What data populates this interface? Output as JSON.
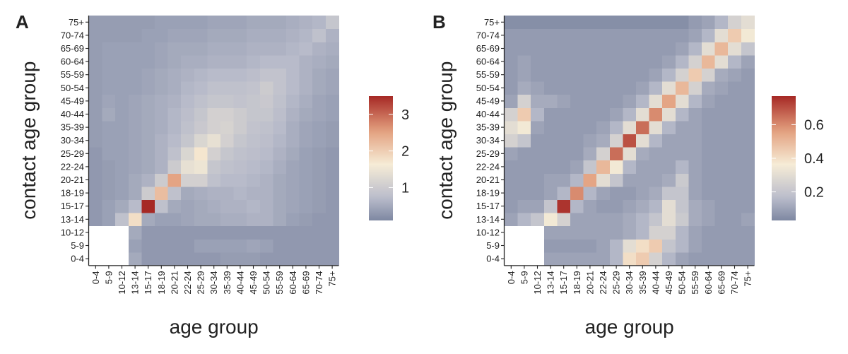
{
  "colors": {
    "low": "#7d87a1",
    "mid_low": "#b9bccb",
    "mid": "#f6ecd6",
    "mid_high": "#e3a07f",
    "high": "#a62925",
    "axis": "#222222"
  },
  "chart_data": [
    {
      "type": "heatmap",
      "panel_label": "A",
      "xlabel": "age group",
      "ylabel": "contact age group",
      "categories": [
        "0-4",
        "5-9",
        "10-12",
        "13-14",
        "15-17",
        "18-19",
        "20-21",
        "22-24",
        "25-29",
        "30-34",
        "35-39",
        "40-44",
        "45-49",
        "50-54",
        "55-59",
        "60-64",
        "65-69",
        "70-74",
        "75+"
      ],
      "value_range": [
        0.1,
        3.5
      ],
      "colorbar_ticks": [
        1,
        2,
        3
      ],
      "colorbar_tick_labels": [
        "1",
        "2",
        "3"
      ],
      "missing_cells": "participant age groups 0-4, 5-9, 10-12 for contact age groups 0-4, 5-9, 10-12",
      "values": [
        [
          null,
          null,
          null,
          0.5,
          0.3,
          0.3,
          0.3,
          0.3,
          0.3,
          0.3,
          0.35,
          0.35,
          0.35,
          0.3,
          0.3,
          0.3,
          0.3,
          0.3,
          0.3
        ],
        [
          null,
          null,
          null,
          0.4,
          0.3,
          0.3,
          0.3,
          0.3,
          0.4,
          0.4,
          0.4,
          0.4,
          0.45,
          0.4,
          0.3,
          0.3,
          0.3,
          0.3,
          0.3
        ],
        [
          null,
          null,
          null,
          0.5,
          0.3,
          0.3,
          0.3,
          0.3,
          0.3,
          0.3,
          0.3,
          0.3,
          0.3,
          0.3,
          0.3,
          0.3,
          0.3,
          0.3,
          0.3
        ],
        [
          0.3,
          0.4,
          0.8,
          1.8,
          0.5,
          0.4,
          0.4,
          0.45,
          0.5,
          0.5,
          0.55,
          0.55,
          0.6,
          0.6,
          0.5,
          0.4,
          0.35,
          0.3,
          0.3
        ],
        [
          0.3,
          0.4,
          0.5,
          0.7,
          3.5,
          0.8,
          0.5,
          0.45,
          0.5,
          0.55,
          0.6,
          0.6,
          0.65,
          0.6,
          0.5,
          0.45,
          0.4,
          0.35,
          0.3
        ],
        [
          0.3,
          0.35,
          0.4,
          0.5,
          1.0,
          2.2,
          0.8,
          0.5,
          0.55,
          0.6,
          0.6,
          0.65,
          0.6,
          0.6,
          0.5,
          0.45,
          0.4,
          0.35,
          0.3
        ],
        [
          0.3,
          0.35,
          0.4,
          0.5,
          0.6,
          1.0,
          2.5,
          1.1,
          1.1,
          0.8,
          0.7,
          0.7,
          0.65,
          0.6,
          0.5,
          0.45,
          0.4,
          0.35,
          0.3
        ],
        [
          0.3,
          0.35,
          0.4,
          0.45,
          0.5,
          0.6,
          1.0,
          1.4,
          1.5,
          0.9,
          0.8,
          0.75,
          0.7,
          0.65,
          0.55,
          0.45,
          0.4,
          0.35,
          0.3
        ],
        [
          0.3,
          0.4,
          0.4,
          0.45,
          0.5,
          0.6,
          0.8,
          1.2,
          1.7,
          1.1,
          0.9,
          0.8,
          0.75,
          0.7,
          0.6,
          0.5,
          0.4,
          0.35,
          0.3
        ],
        [
          0.35,
          0.4,
          0.4,
          0.45,
          0.5,
          0.6,
          0.7,
          0.9,
          1.2,
          1.4,
          1.1,
          0.9,
          0.8,
          0.75,
          0.65,
          0.55,
          0.45,
          0.4,
          0.35
        ],
        [
          0.35,
          0.4,
          0.4,
          0.45,
          0.5,
          0.55,
          0.65,
          0.8,
          0.95,
          1.1,
          1.15,
          1.0,
          0.85,
          0.8,
          0.7,
          0.55,
          0.45,
          0.4,
          0.35
        ],
        [
          0.35,
          0.5,
          0.4,
          0.45,
          0.5,
          0.55,
          0.65,
          0.75,
          0.9,
          1.1,
          1.1,
          1.0,
          0.9,
          0.9,
          0.75,
          0.6,
          0.5,
          0.45,
          0.4
        ],
        [
          0.35,
          0.45,
          0.4,
          0.45,
          0.5,
          0.55,
          0.6,
          0.7,
          0.8,
          0.9,
          0.9,
          0.85,
          0.9,
          0.95,
          0.8,
          0.65,
          0.55,
          0.45,
          0.4
        ],
        [
          0.35,
          0.4,
          0.4,
          0.4,
          0.45,
          0.5,
          0.55,
          0.65,
          0.7,
          0.8,
          0.8,
          0.8,
          0.85,
          1.0,
          0.85,
          0.7,
          0.6,
          0.5,
          0.45
        ],
        [
          0.35,
          0.4,
          0.4,
          0.4,
          0.45,
          0.5,
          0.55,
          0.6,
          0.65,
          0.7,
          0.7,
          0.7,
          0.75,
          0.85,
          0.85,
          0.7,
          0.6,
          0.5,
          0.45
        ],
        [
          0.35,
          0.4,
          0.4,
          0.4,
          0.4,
          0.45,
          0.5,
          0.55,
          0.55,
          0.6,
          0.6,
          0.6,
          0.65,
          0.7,
          0.7,
          0.7,
          0.6,
          0.55,
          0.5
        ],
        [
          0.35,
          0.4,
          0.4,
          0.4,
          0.4,
          0.45,
          0.5,
          0.5,
          0.5,
          0.55,
          0.55,
          0.55,
          0.6,
          0.6,
          0.6,
          0.65,
          0.7,
          0.6,
          0.55
        ],
        [
          0.35,
          0.35,
          0.35,
          0.35,
          0.4,
          0.4,
          0.45,
          0.45,
          0.45,
          0.5,
          0.5,
          0.5,
          0.55,
          0.55,
          0.55,
          0.6,
          0.65,
          0.8,
          0.6
        ],
        [
          0.35,
          0.35,
          0.35,
          0.35,
          0.35,
          0.4,
          0.4,
          0.4,
          0.4,
          0.45,
          0.45,
          0.45,
          0.5,
          0.5,
          0.5,
          0.55,
          0.6,
          0.65,
          0.9
        ]
      ]
    },
    {
      "type": "heatmap",
      "panel_label": "B",
      "xlabel": "age group",
      "ylabel": "contact age group",
      "categories": [
        "0-4",
        "5-9",
        "10-12",
        "13-14",
        "15-17",
        "18-19",
        "20-21",
        "22-24",
        "25-29",
        "30-34",
        "35-39",
        "40-44",
        "45-49",
        "50-54",
        "55-59",
        "60-64",
        "65-69",
        "70-74",
        "75+"
      ],
      "value_range": [
        0.03,
        0.77
      ],
      "colorbar_ticks": [
        0.2,
        0.4,
        0.6
      ],
      "colorbar_tick_labels": [
        "0.2",
        "0.4",
        "0.6"
      ],
      "missing_cells": "participant age groups 0-4, 5-9, 10-12 for contact age groups 0-4, 5-9, 10-12",
      "values": [
        [
          null,
          null,
          null,
          0.1,
          0.1,
          0.1,
          0.1,
          0.1,
          0.15,
          0.4,
          0.45,
          0.25,
          0.15,
          0.1,
          0.08,
          0.08,
          0.08,
          0.08,
          0.08
        ],
        [
          null,
          null,
          null,
          0.08,
          0.08,
          0.08,
          0.08,
          0.1,
          0.15,
          0.3,
          0.4,
          0.45,
          0.2,
          0.15,
          0.1,
          0.08,
          0.08,
          0.08,
          0.08
        ],
        [
          null,
          null,
          null,
          0.1,
          0.1,
          0.1,
          0.1,
          0.1,
          0.1,
          0.12,
          0.15,
          0.25,
          0.25,
          0.15,
          0.1,
          0.08,
          0.08,
          0.08,
          0.08
        ],
        [
          0.1,
          0.15,
          0.2,
          0.35,
          0.25,
          0.1,
          0.1,
          0.1,
          0.1,
          0.12,
          0.15,
          0.2,
          0.3,
          0.22,
          0.12,
          0.1,
          0.08,
          0.08,
          0.1
        ],
        [
          0.08,
          0.1,
          0.1,
          0.2,
          0.75,
          0.15,
          0.1,
          0.08,
          0.08,
          0.1,
          0.12,
          0.15,
          0.3,
          0.2,
          0.12,
          0.1,
          0.08,
          0.08,
          0.08
        ],
        [
          0.08,
          0.08,
          0.08,
          0.1,
          0.15,
          0.6,
          0.15,
          0.1,
          0.08,
          0.08,
          0.1,
          0.12,
          0.2,
          0.2,
          0.1,
          0.08,
          0.08,
          0.08,
          0.08
        ],
        [
          0.08,
          0.08,
          0.08,
          0.1,
          0.1,
          0.15,
          0.55,
          0.3,
          0.2,
          0.1,
          0.1,
          0.1,
          0.12,
          0.22,
          0.1,
          0.08,
          0.08,
          0.08,
          0.08
        ],
        [
          0.08,
          0.08,
          0.08,
          0.08,
          0.08,
          0.1,
          0.2,
          0.5,
          0.35,
          0.15,
          0.1,
          0.1,
          0.1,
          0.15,
          0.1,
          0.08,
          0.08,
          0.08,
          0.08
        ],
        [
          0.1,
          0.08,
          0.08,
          0.08,
          0.08,
          0.08,
          0.12,
          0.25,
          0.65,
          0.3,
          0.12,
          0.1,
          0.1,
          0.1,
          0.1,
          0.08,
          0.08,
          0.08,
          0.08
        ],
        [
          0.25,
          0.2,
          0.08,
          0.08,
          0.08,
          0.08,
          0.1,
          0.12,
          0.25,
          0.7,
          0.3,
          0.15,
          0.1,
          0.1,
          0.1,
          0.08,
          0.08,
          0.08,
          0.08
        ],
        [
          0.3,
          0.35,
          0.1,
          0.08,
          0.08,
          0.08,
          0.08,
          0.1,
          0.15,
          0.3,
          0.65,
          0.3,
          0.15,
          0.1,
          0.1,
          0.08,
          0.08,
          0.08,
          0.08
        ],
        [
          0.25,
          0.45,
          0.15,
          0.08,
          0.08,
          0.08,
          0.08,
          0.08,
          0.1,
          0.15,
          0.3,
          0.6,
          0.3,
          0.15,
          0.1,
          0.08,
          0.08,
          0.08,
          0.08
        ],
        [
          0.1,
          0.25,
          0.12,
          0.12,
          0.1,
          0.08,
          0.08,
          0.08,
          0.08,
          0.1,
          0.15,
          0.3,
          0.55,
          0.3,
          0.15,
          0.1,
          0.08,
          0.08,
          0.08
        ],
        [
          0.08,
          0.12,
          0.1,
          0.08,
          0.08,
          0.08,
          0.08,
          0.08,
          0.08,
          0.08,
          0.1,
          0.15,
          0.3,
          0.5,
          0.25,
          0.12,
          0.1,
          0.08,
          0.08
        ],
        [
          0.08,
          0.1,
          0.08,
          0.08,
          0.08,
          0.08,
          0.08,
          0.08,
          0.08,
          0.08,
          0.08,
          0.1,
          0.15,
          0.25,
          0.45,
          0.25,
          0.12,
          0.1,
          0.08
        ],
        [
          0.08,
          0.1,
          0.08,
          0.08,
          0.08,
          0.08,
          0.08,
          0.08,
          0.08,
          0.08,
          0.08,
          0.08,
          0.1,
          0.15,
          0.25,
          0.5,
          0.3,
          0.15,
          0.1
        ],
        [
          0.08,
          0.08,
          0.08,
          0.08,
          0.08,
          0.08,
          0.08,
          0.08,
          0.08,
          0.08,
          0.08,
          0.08,
          0.08,
          0.1,
          0.15,
          0.3,
          0.5,
          0.3,
          0.2
        ],
        [
          0.08,
          0.08,
          0.08,
          0.08,
          0.08,
          0.08,
          0.08,
          0.08,
          0.08,
          0.08,
          0.08,
          0.08,
          0.08,
          0.08,
          0.1,
          0.15,
          0.3,
          0.45,
          0.35
        ],
        [
          0.05,
          0.05,
          0.05,
          0.05,
          0.05,
          0.05,
          0.05,
          0.05,
          0.05,
          0.05,
          0.05,
          0.05,
          0.05,
          0.05,
          0.08,
          0.1,
          0.15,
          0.25,
          0.3
        ]
      ]
    }
  ]
}
